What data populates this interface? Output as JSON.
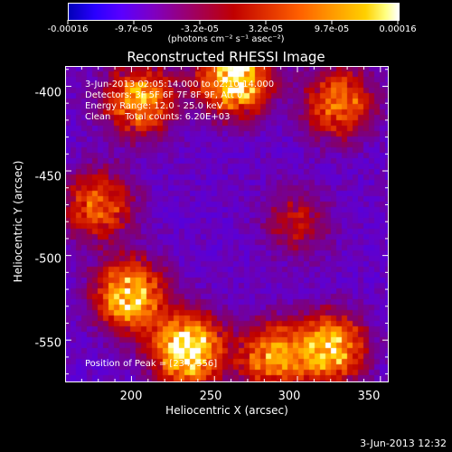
{
  "chart_data": {
    "type": "heatmap",
    "title": "Reconstructed RHESSI Image",
    "xlabel": "Heliocentric X (arcsec)",
    "ylabel": "Heliocentric Y (arcsec)",
    "xlim": [
      160,
      355
    ],
    "ylim": [
      -575,
      -388
    ],
    "x_ticks": [
      "200",
      "250",
      "300",
      "350"
    ],
    "y_ticks": [
      "-400",
      "-450",
      "-500",
      "-550"
    ],
    "colorbar": {
      "units": "(photons cm⁻² s⁻¹ asec⁻²)",
      "tick_labels": [
        "-0.00016",
        "-9.7e-05",
        "-3.2e-05",
        "3.2e-05",
        "9.7e-05",
        "0.00016"
      ],
      "range": [
        -0.00016,
        0.00016
      ]
    },
    "annotations": {
      "time": "3-Jun-2013 02:05:14.000 to 02:10:14.000",
      "detectors": "Detectors: 3F 5F 6F 7F 8F 9F, Att 0",
      "energy": "Energy Range: 12.0 - 25.0 keV",
      "method": "Clean     Total counts: 6.20E+03",
      "peak": "Position of Peak = [234,-556]"
    },
    "bright_sources": [
      {
        "x": 234,
        "y": -556,
        "intensity": 1.0
      },
      {
        "x": 262,
        "y": -396,
        "intensity": 0.95
      },
      {
        "x": 205,
        "y": -408,
        "intensity": 0.7
      },
      {
        "x": 199,
        "y": -524,
        "intensity": 0.85
      },
      {
        "x": 320,
        "y": -555,
        "intensity": 0.8
      },
      {
        "x": 285,
        "y": -560,
        "intensity": 0.65
      },
      {
        "x": 325,
        "y": -410,
        "intensity": 0.6
      },
      {
        "x": 180,
        "y": -470,
        "intensity": 0.55
      },
      {
        "x": 300,
        "y": -480,
        "intensity": 0.3
      }
    ],
    "footer_date": "3-Jun-2013 12:32"
  }
}
